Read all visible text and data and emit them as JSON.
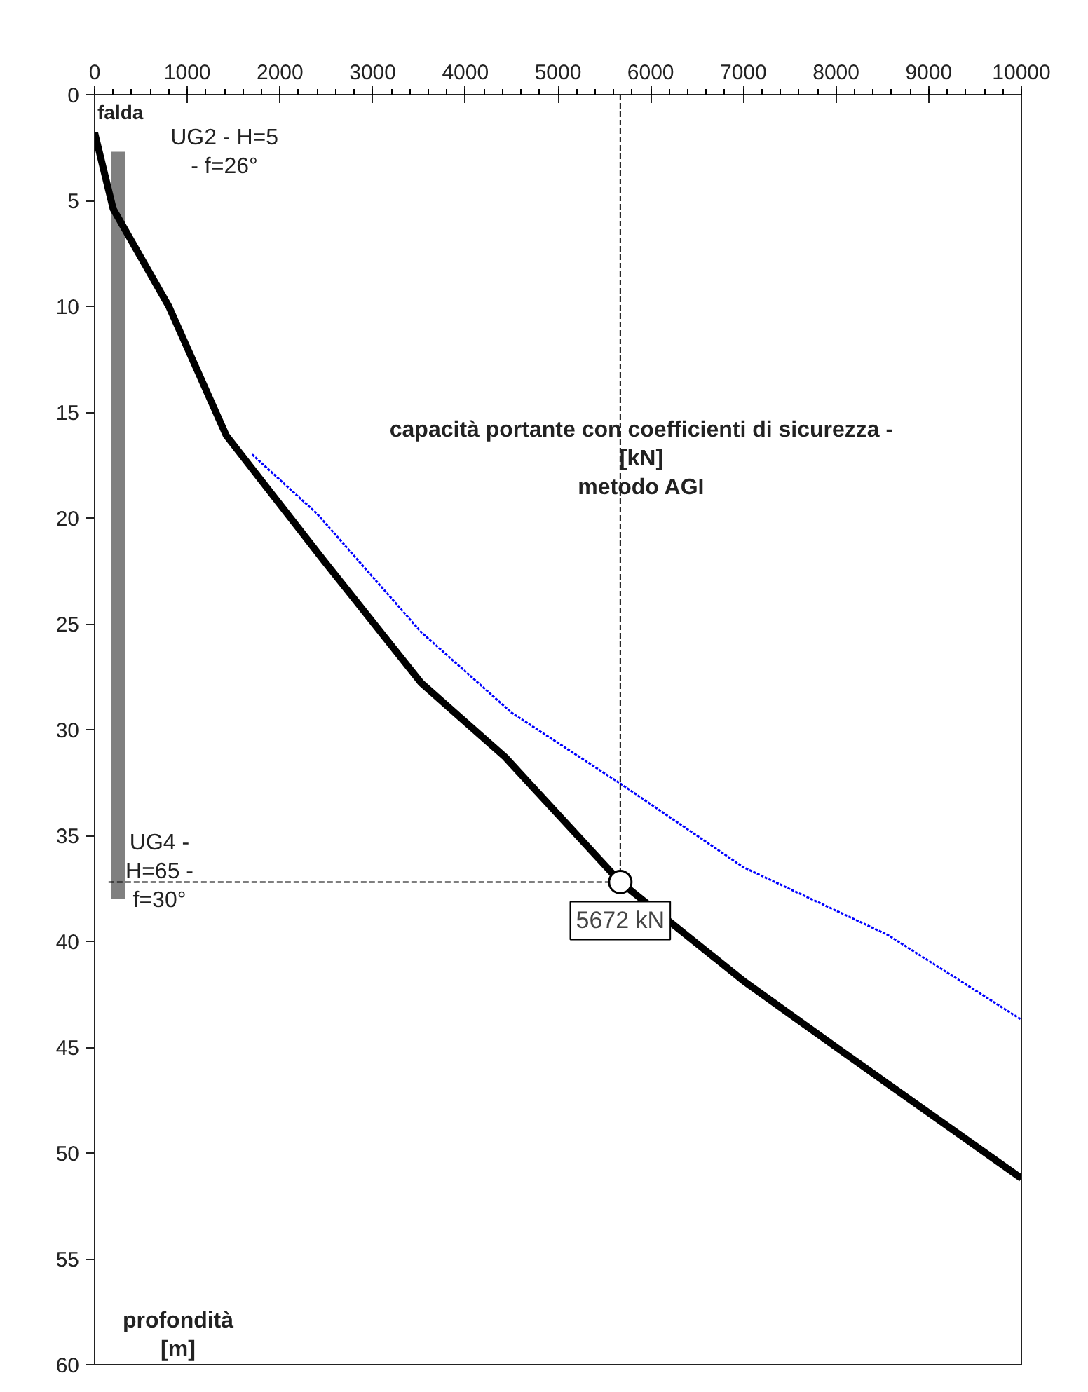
{
  "chart_data": {
    "type": "line",
    "xlabel": "capacità portante con coefficienti di sicurezza -\n[kN]\nmetodo AGI",
    "ylabel": "profondità\n[m]",
    "xlim": [
      0,
      10000
    ],
    "xticks": [
      0,
      1000,
      2000,
      3000,
      4000,
      5000,
      6000,
      7000,
      8000,
      9000,
      10000
    ],
    "ylim": [
      60,
      0
    ],
    "yticks": [
      0,
      5,
      10,
      15,
      20,
      25,
      30,
      35,
      40,
      45,
      50,
      55,
      60
    ],
    "grid": false,
    "series": [
      {
        "color": "#808080",
        "line_style": "solid",
        "x": [
          250,
          250
        ],
        "values": [
          2.7,
          38
        ]
      },
      {
        "color": "#0000ff",
        "line_style": "dotted",
        "x": [
          1700,
          2400,
          3525,
          4500,
          5690,
          7000,
          8560,
          10000
        ],
        "values": [
          17,
          19.8,
          25.4,
          29.2,
          32.6,
          36.5,
          39.7,
          43.7
        ]
      },
      {
        "color": "#000000",
        "line_style": "solid",
        "x": [
          0,
          200,
          800,
          1420,
          2470,
          3525,
          4430,
          5672,
          7010,
          8064,
          10000
        ],
        "values": [
          1.8,
          5.4,
          10,
          16.1,
          22,
          27.8,
          31.3,
          37.2,
          41.9,
          45.2,
          51.2
        ]
      }
    ],
    "ref_lines": [
      {
        "axis": "x",
        "value": 5672,
        "line_style": "dashed",
        "color": "#000000"
      },
      {
        "axis": "y",
        "value": 37.2,
        "line_style": "dashed",
        "color": "#000000"
      }
    ],
    "annotations": [
      {
        "text": "5672 kN",
        "x": 5672,
        "y": 37.2
      },
      "falda",
      "UG2 - H=5\n- f=26°",
      "UG4 -\nH=65 -\nf=30°"
    ]
  }
}
